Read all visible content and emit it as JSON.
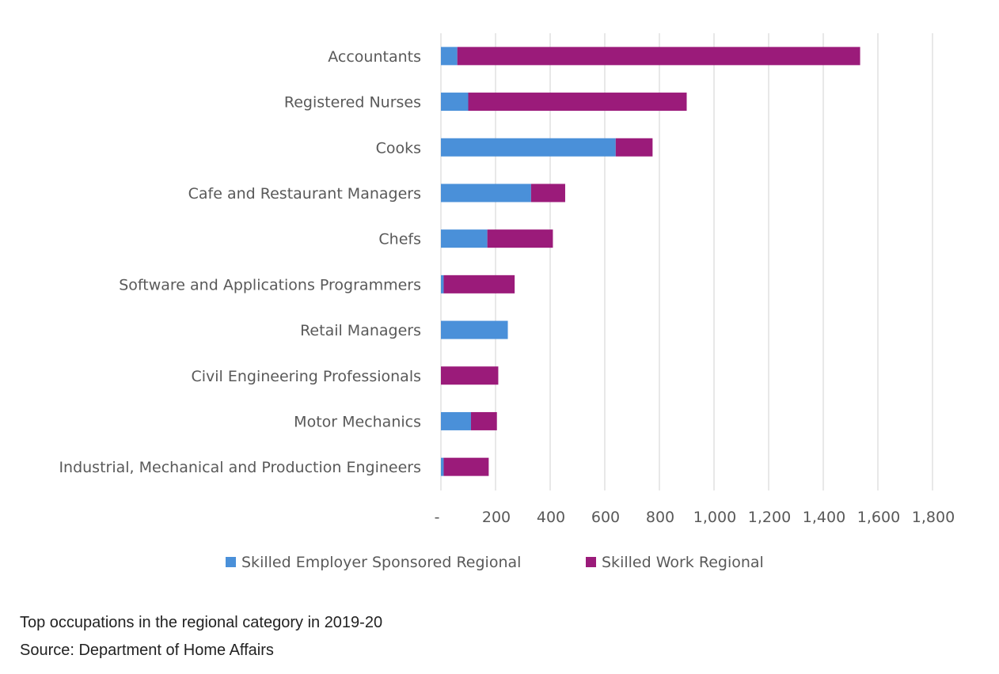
{
  "chart_data": {
    "type": "bar",
    "orientation": "horizontal",
    "stacked": true,
    "categories": [
      "Accountants",
      "Registered Nurses",
      "Cooks",
      "Cafe and Restaurant Managers",
      "Chefs",
      "Software and Applications Programmers",
      "Retail Managers",
      "Civil Engineering Professionals",
      "Motor Mechanics",
      "Industrial, Mechanical and Production Engineers"
    ],
    "series": [
      {
        "name": "Skilled Employer Sponsored Regional",
        "color": "#4a90d9",
        "values": [
          60,
          100,
          640,
          330,
          170,
          10,
          245,
          0,
          110,
          10
        ]
      },
      {
        "name": "Skilled Work Regional",
        "color": "#9b1b7a",
        "values": [
          1475,
          800,
          135,
          125,
          240,
          260,
          0,
          210,
          95,
          165
        ]
      }
    ],
    "xlim": [
      0,
      1800
    ],
    "x_ticks": [
      "-",
      "200",
      "400",
      "600",
      "800",
      "1,000",
      "1,200",
      "1,400",
      "1,600",
      "1,800"
    ],
    "grid": true,
    "legend_position": "bottom"
  },
  "caption": {
    "title": "Top occupations in the regional category in 2019-20",
    "source": "Source: Department of Home Affairs"
  }
}
